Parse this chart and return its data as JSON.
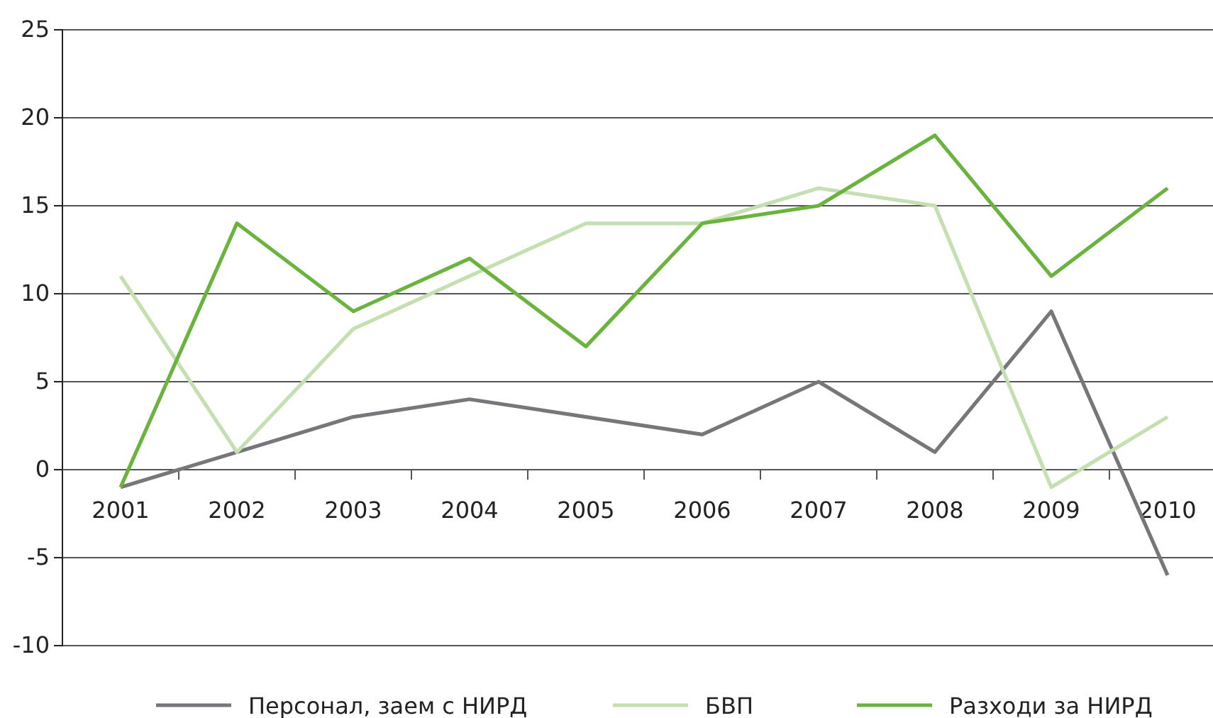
{
  "chart_data": {
    "type": "line",
    "categories": [
      "2001",
      "2002",
      "2003",
      "2004",
      "2005",
      "2006",
      "2007",
      "2008",
      "2009",
      "2010"
    ],
    "series": [
      {
        "name": "Персонал, заем с НИРД",
        "color": "#77777b",
        "values": [
          -1,
          1,
          3,
          4,
          3,
          2,
          5,
          1,
          9,
          -6
        ]
      },
      {
        "name": "БВП",
        "color": "#c5e0b0",
        "values": [
          11,
          1,
          8,
          11,
          14,
          14,
          16,
          15,
          -1,
          3
        ]
      },
      {
        "name": "Разходи за НИРД",
        "color": "#6ab43e",
        "values": [
          -1,
          14,
          9,
          12,
          7,
          14,
          15,
          19,
          11,
          16
        ]
      }
    ],
    "ylim": [
      -10,
      25
    ],
    "yticks": [
      -10,
      -5,
      0,
      5,
      10,
      15,
      20,
      25
    ],
    "grid": "y",
    "legend": "bottom",
    "marker": "none",
    "line_style": "solid"
  }
}
